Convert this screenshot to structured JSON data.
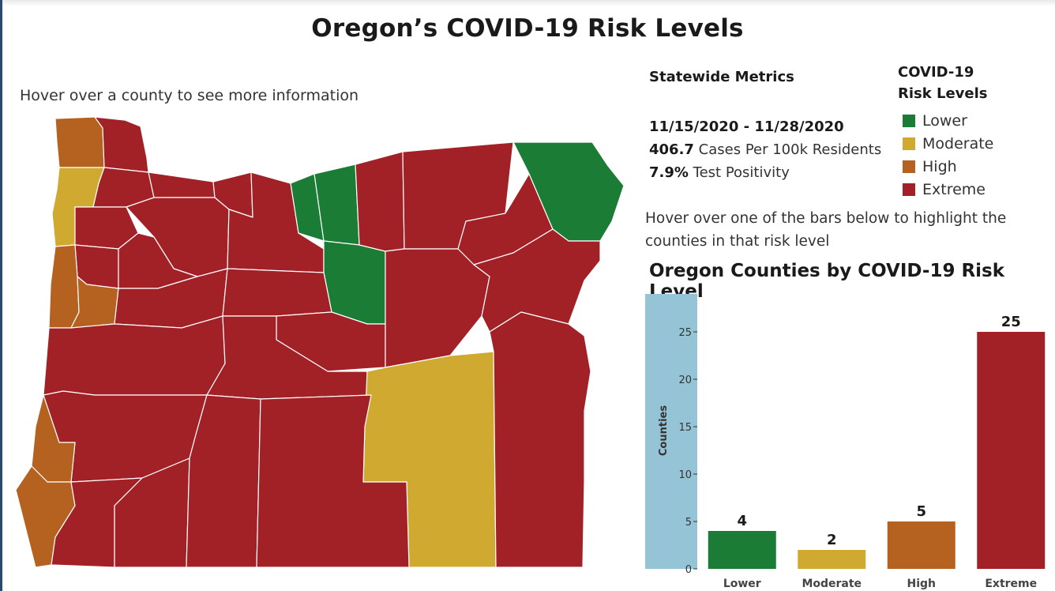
{
  "title": "Oregon’s COVID-19 Risk Levels",
  "map_hint": "Hover over a county to see more information",
  "metrics": {
    "heading": "Statewide Metrics",
    "date_range": "11/15/2020 - 11/28/2020",
    "cases_value": "406.7",
    "cases_label": "Cases Per 100k Residents",
    "positivity_value": "7.9%",
    "positivity_label": "Test Positivity"
  },
  "legend": {
    "title_line1": "COVID-19",
    "title_line2": "Risk Levels",
    "items": [
      {
        "label": "Lower",
        "color": "#1a7c35"
      },
      {
        "label": "Moderate",
        "color": "#cfa930"
      },
      {
        "label": "High",
        "color": "#b5611f"
      },
      {
        "label": "Extreme",
        "color": "#a22127"
      }
    ]
  },
  "bar_hint": "Hover over one of the bars below to highlight the counties in that risk level",
  "chart_data": {
    "type": "bar",
    "title": "Oregon Counties by COVID-19 Risk Level",
    "ylabel": "Counties",
    "xlabel": "",
    "categories": [
      "Lower",
      "Moderate",
      "High",
      "Extreme"
    ],
    "values": [
      4,
      2,
      5,
      25
    ],
    "colors": [
      "#1a7c35",
      "#cfa930",
      "#b5611f",
      "#a22127"
    ],
    "yticks": [
      0,
      5,
      10,
      15,
      20,
      25
    ],
    "ylim": [
      0,
      25
    ],
    "grid": false,
    "axis_band_color": "#95c4d6"
  }
}
